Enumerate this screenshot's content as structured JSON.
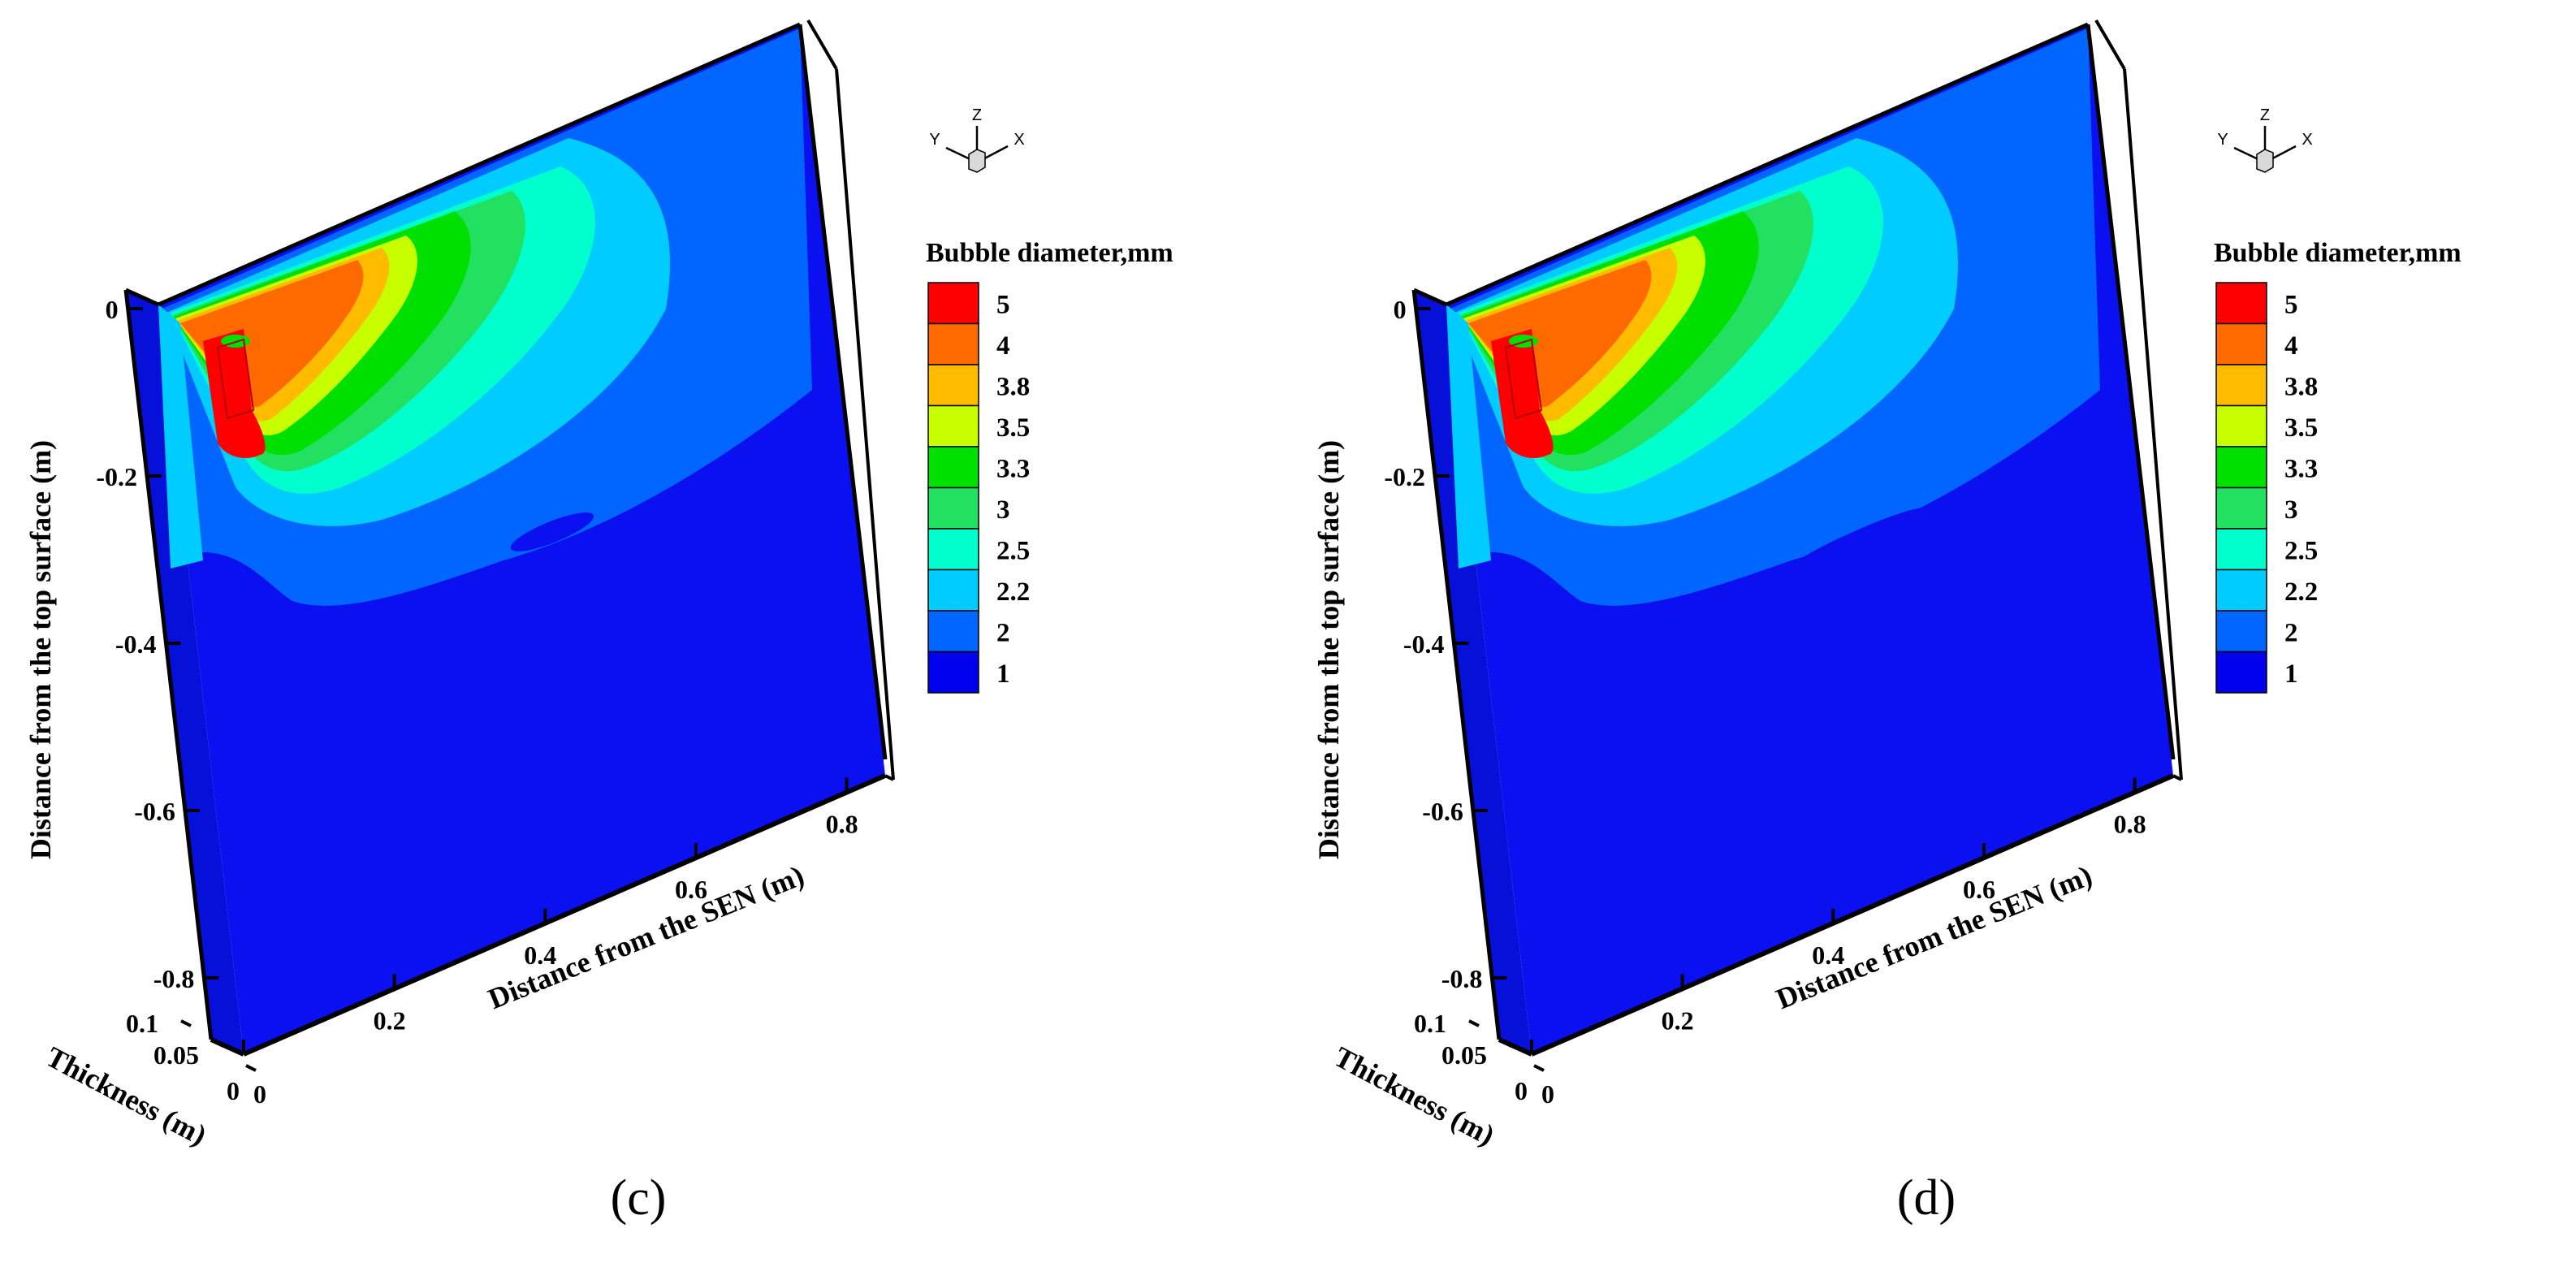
{
  "figure": {
    "legend_title": "Bubble diameter,mm",
    "levels": [
      "5",
      "4",
      "3.8",
      "3.5",
      "3.3",
      "3",
      "2.5",
      "2.2",
      "2",
      "1"
    ],
    "colors": [
      "#ff0000",
      "#ff6a00",
      "#ffbb00",
      "#c8ff00",
      "#00e000",
      "#22e060",
      "#00ffcc",
      "#00ccff",
      "#0066ff",
      "#0000ee"
    ],
    "axis_labels": {
      "vertical": "Distance from the top surface (m)",
      "length": "Distance from the SEN (m)",
      "thickness": "Thickness (m)"
    },
    "ticks": {
      "vertical": [
        "0",
        "-0.2",
        "-0.4",
        "-0.6",
        "-0.8"
      ],
      "length": [
        "0",
        "0.2",
        "0.4",
        "0.6",
        "0.8"
      ],
      "thickness": [
        "0.1",
        "0.05",
        "0"
      ]
    },
    "triad": {
      "x": "X",
      "y": "Y",
      "z": "Z"
    }
  },
  "panels": [
    {
      "caption": "(c)"
    },
    {
      "caption": "(d)"
    }
  ],
  "chart_data": [
    {
      "type": "heatmap",
      "caption": "(c)",
      "legend_title": "Bubble diameter,mm",
      "levels": [
        5,
        4,
        3.8,
        3.5,
        3.3,
        3,
        2.5,
        2.2,
        2,
        1
      ],
      "ylabel": "Distance from the top surface (m)",
      "xlabel": "Distance from the SEN (m)",
      "zlabel": "Thickness (m)",
      "ylim": [
        -0.85,
        0
      ],
      "xlim": [
        0,
        0.85
      ],
      "zlim": [
        0,
        0.1
      ]
    },
    {
      "type": "heatmap",
      "caption": "(d)",
      "legend_title": "Bubble diameter,mm",
      "levels": [
        5,
        4,
        3.8,
        3.5,
        3.3,
        3,
        2.5,
        2.2,
        2,
        1
      ],
      "ylabel": "Distance from the top surface (m)",
      "xlabel": "Distance from the SEN (m)",
      "zlabel": "Thickness (m)",
      "ylim": [
        -0.85,
        0
      ],
      "xlim": [
        0,
        0.85
      ],
      "zlim": [
        0,
        0.1
      ]
    }
  ]
}
